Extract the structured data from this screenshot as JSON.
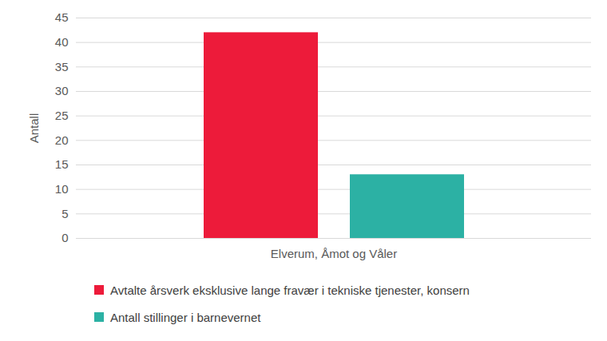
{
  "chart_data": {
    "type": "bar",
    "categories": [
      "Elverum, Åmot og Våler"
    ],
    "series": [
      {
        "name": "Avtalte årsverk eksklusive lange fravær i tekniske tjenester, konsern",
        "color": "#ed1b3a",
        "values": [
          42
        ]
      },
      {
        "name": "Antall stillinger i barnevernet",
        "color": "#2cb1a4",
        "values": [
          13
        ]
      }
    ],
    "ylabel": "Antall",
    "ylim": [
      0,
      45
    ],
    "yticks": [
      0,
      5,
      10,
      15,
      20,
      25,
      30,
      35,
      40,
      45
    ],
    "grid": true,
    "legend": "bottom"
  }
}
